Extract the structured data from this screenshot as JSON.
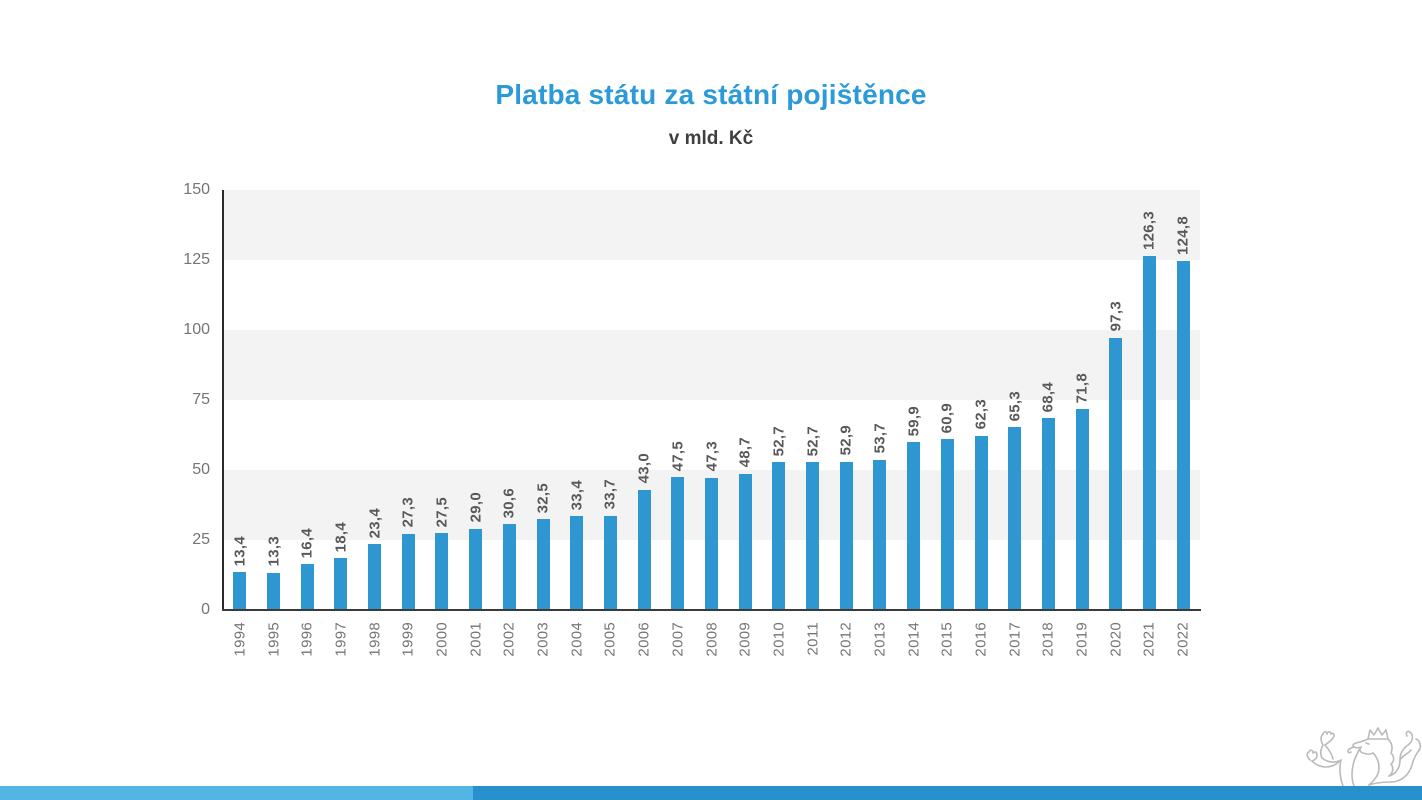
{
  "header": {
    "title": "Platba státu za státní pojištěnce",
    "subtitle": "v mld. Kč",
    "title_color": "#2B9AD9"
  },
  "chart_data": {
    "type": "bar",
    "title": "Platba státu za státní pojištěnce",
    "subtitle": "v mld. Kč",
    "xlabel": "",
    "ylabel": "",
    "ylim": [
      0,
      150
    ],
    "yticks": [
      150,
      125,
      100,
      75,
      50,
      25,
      0
    ],
    "grid": "alternating horizontal bands",
    "legend": "none",
    "categories": [
      "1994",
      "1995",
      "1996",
      "1997",
      "1998",
      "1999",
      "2000",
      "2001",
      "2002",
      "2003",
      "2004",
      "2005",
      "2006",
      "2007",
      "2008",
      "2009",
      "2010",
      "2011",
      "2012",
      "2013",
      "2014",
      "2015",
      "2016",
      "2017",
      "2018",
      "2019",
      "2020",
      "2021",
      "2022"
    ],
    "values": [
      13.4,
      13.3,
      16.4,
      18.4,
      23.4,
      27.3,
      27.5,
      29.0,
      30.6,
      32.5,
      33.4,
      33.7,
      43.0,
      47.5,
      47.3,
      48.7,
      52.7,
      52.7,
      52.9,
      53.7,
      59.9,
      60.9,
      62.3,
      65.3,
      68.4,
      71.8,
      97.3,
      126.3,
      124.8
    ],
    "value_labels": [
      "13,4",
      "13,3",
      "16,4",
      "18,4",
      "23,4",
      "27,3",
      "27,5",
      "29,0",
      "30,6",
      "32,5",
      "33,4",
      "33,7",
      "43,0",
      "47,5",
      "47,3",
      "48,7",
      "52,7",
      "52,7",
      "52,9",
      "53,7",
      "59,9",
      "60,9",
      "62,3",
      "65,3",
      "68,4",
      "71,8",
      "97,3",
      "126,3",
      "124,8"
    ],
    "bar_color": "#2E96D1",
    "band_color": "#F3F3F3",
    "value_label_color": "#595959",
    "tick_label_color": "#757575"
  },
  "footer": {
    "stripe_light_color": "#53B5E3",
    "stripe_dark_color": "#2890CC"
  },
  "logo": {
    "name": "czech-heraldic-lion",
    "color": "#BBBBBB"
  }
}
